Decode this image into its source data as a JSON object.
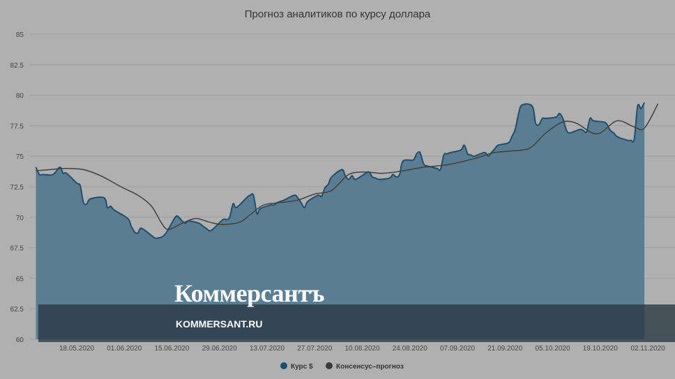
{
  "watermark": {
    "logo": "Коммерсантъ",
    "url": "KOMMERSANT.RU"
  },
  "chart_data": {
    "type": "area",
    "title": "Прогноз аналитиков по курсу доллара",
    "xlabel": "",
    "ylabel": "",
    "ylim": [
      60,
      85
    ],
    "y_ticks": [
      "60",
      "62.5",
      "65",
      "67.5",
      "70",
      "72.5",
      "75",
      "77.5",
      "80",
      "82.5",
      "85"
    ],
    "x_ticks": [
      "18.05.2020",
      "01.06.2020",
      "15.06.2020",
      "29.06.2020",
      "13.07.2020",
      "27.07.2020",
      "10.08.2020",
      "24.08.2020",
      "07.09.2020",
      "21.09.2020",
      "05.10.2020",
      "19.10.2020",
      "02.11.2020"
    ],
    "grid": true,
    "legend_position": "bottom-center",
    "series": [
      {
        "name": "Курс $",
        "type": "area",
        "color": "#1f4e6e",
        "fill": "#5a7d92",
        "points": [
          [
            "2020-05-06",
            74.1
          ],
          [
            "2020-05-07",
            73.5
          ],
          [
            "2020-05-08",
            73.5
          ],
          [
            "2020-05-11",
            73.5
          ],
          [
            "2020-05-13",
            74.1
          ],
          [
            "2020-05-14",
            73.6
          ],
          [
            "2020-05-15",
            73.6
          ],
          [
            "2020-05-18",
            72.8
          ],
          [
            "2020-05-19",
            72.6
          ],
          [
            "2020-05-20",
            71.2
          ],
          [
            "2020-05-21",
            71.1
          ],
          [
            "2020-05-22",
            71.5
          ],
          [
            "2020-05-26",
            71.6
          ],
          [
            "2020-05-27",
            70.8
          ],
          [
            "2020-05-28",
            70.9
          ],
          [
            "2020-05-29",
            70.6
          ],
          [
            "2020-06-02",
            69.9
          ],
          [
            "2020-06-03",
            69.3
          ],
          [
            "2020-06-04",
            68.8
          ],
          [
            "2020-06-05",
            68.7
          ],
          [
            "2020-06-06",
            69.1
          ],
          [
            "2020-06-09",
            68.5
          ],
          [
            "2020-06-10",
            68.3
          ],
          [
            "2020-06-11",
            68.3
          ],
          [
            "2020-06-13",
            68.6
          ],
          [
            "2020-06-16",
            70.0
          ],
          [
            "2020-06-17",
            70.0
          ],
          [
            "2020-06-18",
            69.7
          ],
          [
            "2020-06-19",
            69.5
          ],
          [
            "2020-06-20",
            69.7
          ],
          [
            "2020-06-23",
            69.5
          ],
          [
            "2020-06-24",
            69.3
          ],
          [
            "2020-06-25",
            69.1
          ],
          [
            "2020-06-26",
            68.9
          ],
          [
            "2020-06-27",
            69.0
          ],
          [
            "2020-06-30",
            69.8
          ],
          [
            "2020-07-01",
            69.8
          ],
          [
            "2020-07-02",
            70.0
          ],
          [
            "2020-07-03",
            71.1
          ],
          [
            "2020-07-04",
            70.8
          ],
          [
            "2020-07-07",
            71.6
          ],
          [
            "2020-07-08",
            71.8
          ],
          [
            "2020-07-09",
            71.8
          ],
          [
            "2020-07-10",
            70.3
          ],
          [
            "2020-07-11",
            70.7
          ],
          [
            "2020-07-14",
            71.0
          ],
          [
            "2020-07-15",
            71.0
          ],
          [
            "2020-07-16",
            71.2
          ],
          [
            "2020-07-17",
            71.3
          ],
          [
            "2020-07-18",
            71.4
          ],
          [
            "2020-07-21",
            71.8
          ],
          [
            "2020-07-22",
            71.6
          ],
          [
            "2020-07-23",
            71.2
          ],
          [
            "2020-07-24",
            70.8
          ],
          [
            "2020-07-25",
            71.3
          ],
          [
            "2020-07-28",
            71.8
          ],
          [
            "2020-07-29",
            71.7
          ],
          [
            "2020-07-30",
            72.4
          ],
          [
            "2020-07-31",
            72.7
          ],
          [
            "2020-08-01",
            73.3
          ],
          [
            "2020-08-04",
            73.9
          ],
          [
            "2020-08-05",
            73.4
          ],
          [
            "2020-08-06",
            73.1
          ],
          [
            "2020-08-07",
            73.4
          ],
          [
            "2020-08-08",
            73.1
          ],
          [
            "2020-08-11",
            73.6
          ],
          [
            "2020-08-12",
            73.7
          ],
          [
            "2020-08-13",
            73.3
          ],
          [
            "2020-08-14",
            73.2
          ],
          [
            "2020-08-15",
            73.1
          ],
          [
            "2020-08-18",
            73.2
          ],
          [
            "2020-08-19",
            73.5
          ],
          [
            "2020-08-20",
            73.3
          ],
          [
            "2020-08-21",
            73.5
          ],
          [
            "2020-08-22",
            74.6
          ],
          [
            "2020-08-25",
            74.7
          ],
          [
            "2020-08-26",
            75.2
          ],
          [
            "2020-08-27",
            75.3
          ],
          [
            "2020-08-28",
            74.4
          ],
          [
            "2020-08-29",
            74.2
          ],
          [
            "2020-09-01",
            74.0
          ],
          [
            "2020-09-02",
            73.9
          ],
          [
            "2020-09-03",
            75.1
          ],
          [
            "2020-09-04",
            75.2
          ],
          [
            "2020-09-05",
            75.3
          ],
          [
            "2020-09-08",
            75.5
          ],
          [
            "2020-09-09",
            75.9
          ],
          [
            "2020-09-10",
            75.2
          ],
          [
            "2020-09-11",
            75.1
          ],
          [
            "2020-09-12",
            75.0
          ],
          [
            "2020-09-15",
            75.3
          ],
          [
            "2020-09-16",
            75.0
          ],
          [
            "2020-09-17",
            75.3
          ],
          [
            "2020-09-18",
            75.6
          ],
          [
            "2020-09-19",
            75.9
          ],
          [
            "2020-09-22",
            76.1
          ],
          [
            "2020-09-23",
            76.6
          ],
          [
            "2020-09-24",
            77.2
          ],
          [
            "2020-09-25",
            78.5
          ],
          [
            "2020-09-26",
            79.2
          ],
          [
            "2020-09-29",
            79.1
          ],
          [
            "2020-09-30",
            77.7
          ],
          [
            "2020-10-01",
            77.6
          ],
          [
            "2020-10-02",
            78.1
          ],
          [
            "2020-10-03",
            78.1
          ],
          [
            "2020-10-06",
            78.2
          ],
          [
            "2020-10-07",
            78.5
          ],
          [
            "2020-10-08",
            78.1
          ],
          [
            "2020-10-09",
            77.2
          ],
          [
            "2020-10-10",
            76.9
          ],
          [
            "2020-10-13",
            77.2
          ],
          [
            "2020-10-14",
            77.1
          ],
          [
            "2020-10-15",
            77.0
          ],
          [
            "2020-10-16",
            78.1
          ],
          [
            "2020-10-17",
            77.9
          ],
          [
            "2020-10-20",
            77.8
          ],
          [
            "2020-10-21",
            77.6
          ],
          [
            "2020-10-22",
            77.1
          ],
          [
            "2020-10-23",
            76.9
          ],
          [
            "2020-10-24",
            76.6
          ],
          [
            "2020-10-27",
            76.3
          ],
          [
            "2020-10-28",
            76.3
          ],
          [
            "2020-10-29",
            76.4
          ],
          [
            "2020-10-30",
            79.1
          ],
          [
            "2020-10-31",
            78.9
          ],
          [
            "2020-11-01",
            79.4
          ]
        ]
      },
      {
        "name": "Консенсус–прогноз",
        "type": "line",
        "color": "#404040",
        "points": [
          [
            "2020-05-06",
            73.8
          ],
          [
            "2020-05-10",
            73.9
          ],
          [
            "2020-05-15",
            74.0
          ],
          [
            "2020-05-20",
            73.9
          ],
          [
            "2020-05-25",
            73.4
          ],
          [
            "2020-05-31",
            72.5
          ],
          [
            "2020-06-05",
            71.8
          ],
          [
            "2020-06-09",
            70.9
          ],
          [
            "2020-06-12",
            69.5
          ],
          [
            "2020-06-14",
            69.0
          ],
          [
            "2020-06-18",
            69.5
          ],
          [
            "2020-06-22",
            69.9
          ],
          [
            "2020-06-26",
            69.6
          ],
          [
            "2020-06-30",
            69.4
          ],
          [
            "2020-07-05",
            69.6
          ],
          [
            "2020-07-08",
            70.2
          ],
          [
            "2020-07-12",
            71.0
          ],
          [
            "2020-07-17",
            71.2
          ],
          [
            "2020-07-22",
            71.4
          ],
          [
            "2020-07-27",
            71.9
          ],
          [
            "2020-08-01",
            72.2
          ],
          [
            "2020-08-06",
            73.5
          ],
          [
            "2020-08-11",
            73.7
          ],
          [
            "2020-08-16",
            73.6
          ],
          [
            "2020-08-22",
            73.8
          ],
          [
            "2020-08-28",
            74.1
          ],
          [
            "2020-09-04",
            74.3
          ],
          [
            "2020-09-12",
            74.8
          ],
          [
            "2020-09-18",
            75.3
          ],
          [
            "2020-09-26",
            75.5
          ],
          [
            "2020-09-29",
            75.8
          ],
          [
            "2020-10-03",
            76.9
          ],
          [
            "2020-10-08",
            77.8
          ],
          [
            "2020-10-12",
            77.7
          ],
          [
            "2020-10-16",
            77.0
          ],
          [
            "2020-10-19",
            76.9
          ],
          [
            "2020-10-24",
            77.9
          ],
          [
            "2020-10-29",
            77.4
          ],
          [
            "2020-11-01",
            77.3
          ],
          [
            "2020-11-05",
            79.3
          ]
        ]
      }
    ]
  }
}
